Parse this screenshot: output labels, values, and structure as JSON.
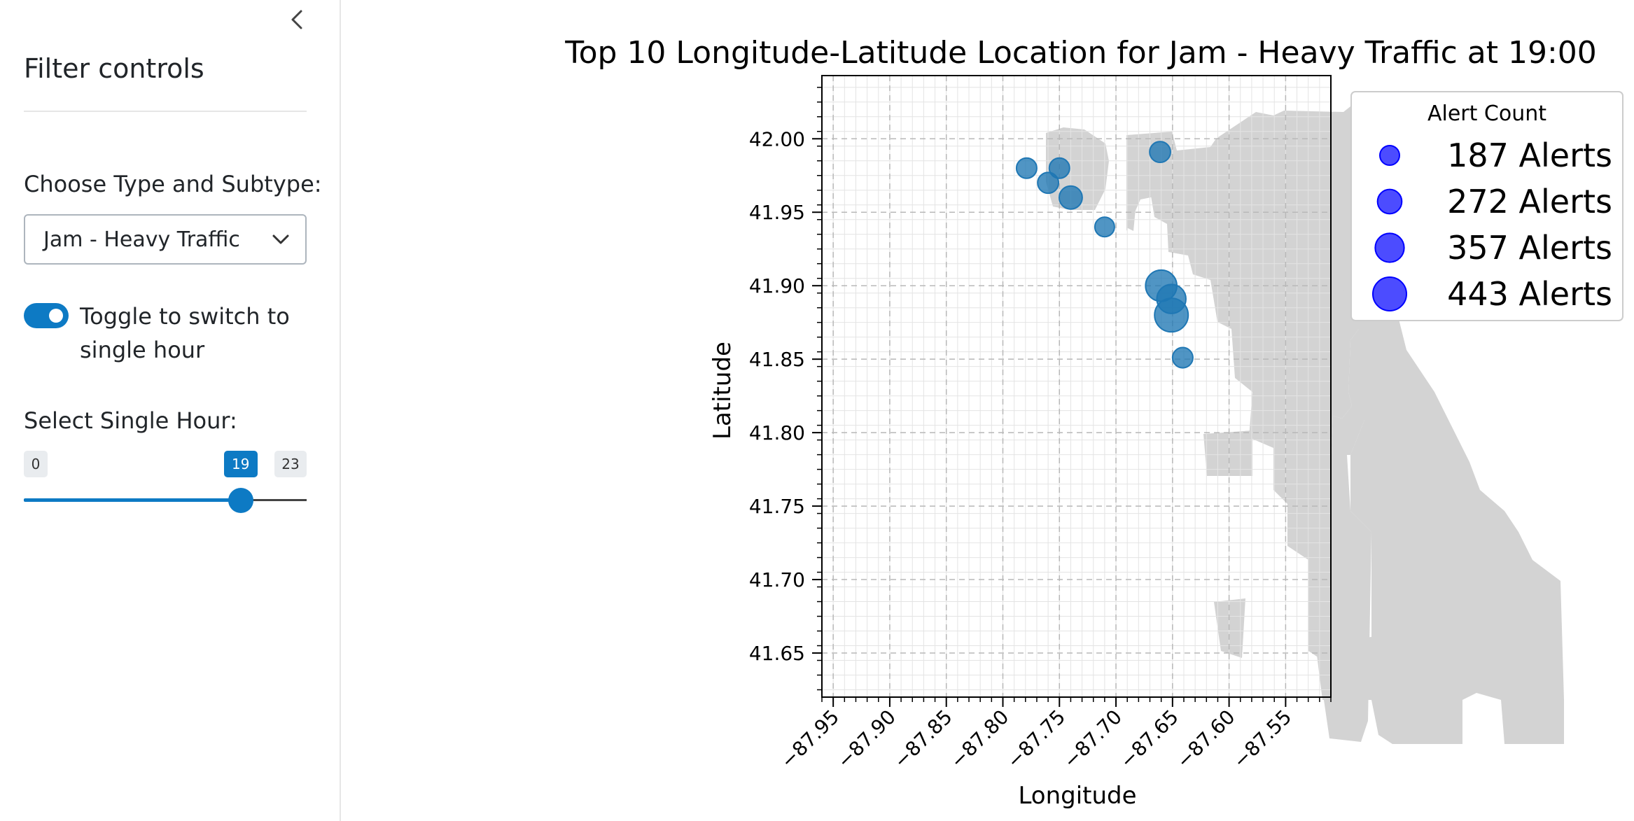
{
  "sidebar": {
    "title": "Filter controls",
    "type_label": "Choose Type and Subtype:",
    "type_value": "Jam - Heavy Traffic",
    "toggle_label": "Toggle to switch to single hour",
    "toggle_on": true,
    "hour_label": "Select Single Hour:",
    "slider_min": 0,
    "slider_max": 23,
    "slider_value": 19,
    "accent_color": "#0d7ac4"
  },
  "icons": {
    "collapse": "chevron-left-icon",
    "dropdown": "chevron-down-icon"
  },
  "chart_data": {
    "type": "scatter",
    "title": "Top 10 Longitude-Latitude Location for Jam - Heavy Traffic at 19:00",
    "xlabel": "Longitude",
    "ylabel": "Latitude",
    "xlim": [
      -87.96,
      -87.51
    ],
    "ylim": [
      41.62,
      42.043
    ],
    "x_ticks": [
      -87.95,
      -87.9,
      -87.85,
      -87.8,
      -87.75,
      -87.7,
      -87.65,
      -87.6,
      -87.55
    ],
    "x_tick_labels": [
      "−87.95",
      "−87.90",
      "−87.85",
      "−87.80",
      "−87.75",
      "−87.70",
      "−87.65",
      "−87.60",
      "−87.55"
    ],
    "y_ticks": [
      41.65,
      41.7,
      41.75,
      41.8,
      41.85,
      41.9,
      41.95,
      42.0
    ],
    "y_tick_labels": [
      "41.65",
      "41.70",
      "41.75",
      "41.80",
      "41.85",
      "41.90",
      "41.95",
      "42.00"
    ],
    "grid": true,
    "point_color": "#1f77b4",
    "legend": {
      "title": "Alert Count",
      "placement": "outside-right-top",
      "color": "#0000ff",
      "entries": [
        {
          "label": "187 Alerts",
          "value": 187
        },
        {
          "label": "272 Alerts",
          "value": 272
        },
        {
          "label": "357 Alerts",
          "value": 357
        },
        {
          "label": "443 Alerts",
          "value": 443
        }
      ]
    },
    "points": [
      {
        "lon": -87.661,
        "lat": 41.991,
        "alerts": 210
      },
      {
        "lon": -87.779,
        "lat": 41.98,
        "alerts": 200
      },
      {
        "lon": -87.75,
        "lat": 41.98,
        "alerts": 200
      },
      {
        "lon": -87.76,
        "lat": 41.97,
        "alerts": 210
      },
      {
        "lon": -87.74,
        "lat": 41.96,
        "alerts": 250
      },
      {
        "lon": -87.71,
        "lat": 41.94,
        "alerts": 187
      },
      {
        "lon": -87.66,
        "lat": 41.9,
        "alerts": 400
      },
      {
        "lon": -87.651,
        "lat": 41.891,
        "alerts": 360
      },
      {
        "lon": -87.651,
        "lat": 41.88,
        "alerts": 443
      },
      {
        "lon": -87.641,
        "lat": 41.851,
        "alerts": 200
      }
    ]
  }
}
